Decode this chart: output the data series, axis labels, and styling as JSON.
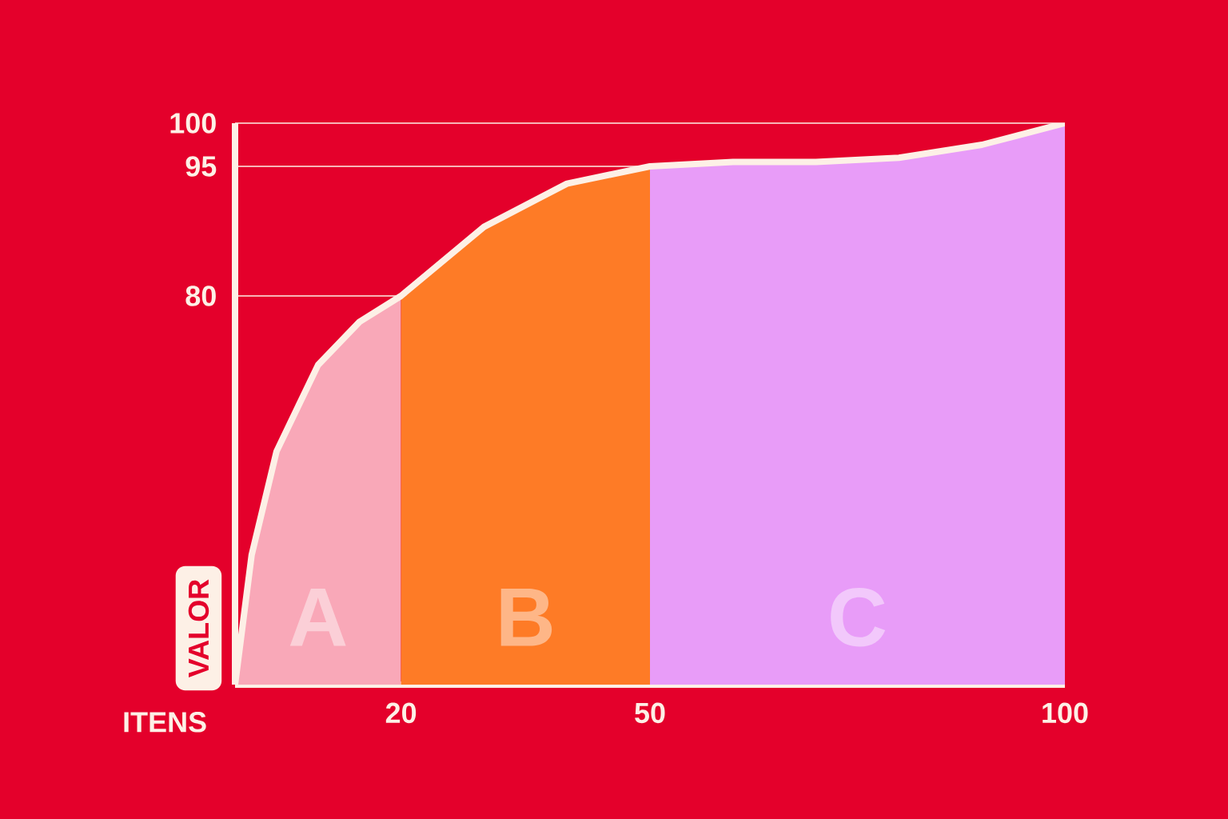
{
  "chart_data": {
    "type": "area",
    "xlabel": "ITENS",
    "ylabel": "VALOR",
    "xlim": [
      0,
      100
    ],
    "ylim": [
      35,
      100
    ],
    "xticks": [
      20,
      50,
      100
    ],
    "yticks": [
      80,
      95,
      100
    ],
    "grid": "y",
    "series": [
      {
        "name": "A",
        "color": "#f9a8b8",
        "x": [
          0,
          2,
          5,
          10,
          15,
          20
        ],
        "values": [
          35,
          50,
          62,
          72,
          77,
          80
        ]
      },
      {
        "name": "B",
        "color": "#fe7b26",
        "x": [
          20,
          30,
          40,
          50
        ],
        "values": [
          80,
          88,
          93,
          95
        ]
      },
      {
        "name": "C",
        "color": "#e89cf8",
        "x": [
          50,
          60,
          70,
          80,
          90,
          100
        ],
        "values": [
          95,
          95.5,
          95.5,
          96,
          97.5,
          100
        ]
      },
      {
        "type": "line",
        "color": "#fdf0e6",
        "x": [
          0,
          2,
          5,
          10,
          15,
          20,
          30,
          40,
          50,
          60,
          70,
          80,
          90,
          100
        ],
        "values": [
          35,
          50,
          62,
          72,
          77,
          80,
          88,
          93,
          95,
          95.5,
          95.5,
          96,
          97.5,
          100
        ]
      }
    ]
  }
}
